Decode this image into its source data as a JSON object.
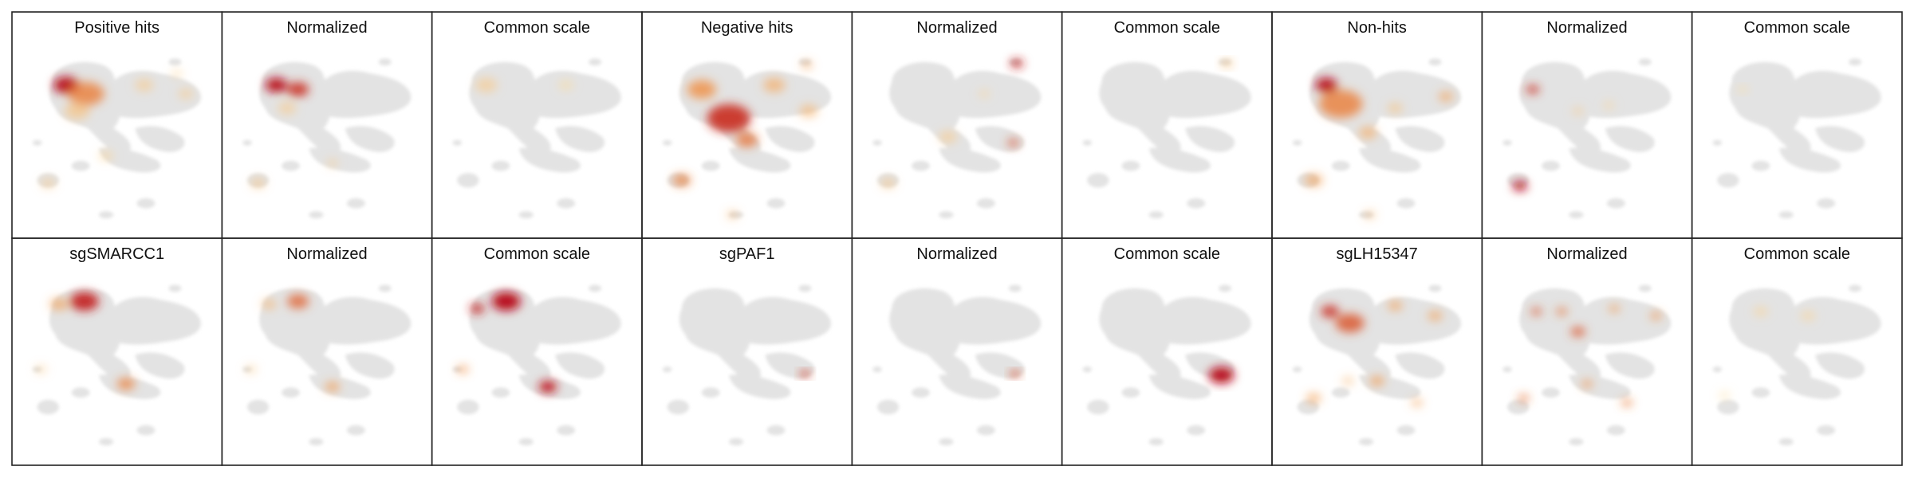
{
  "colors": {
    "background_cells": "#e3e3e3",
    "border": "#222222",
    "low": "#fff3b8",
    "mid": "#f08a3c",
    "high": "#b80a1a"
  },
  "rows": [
    {
      "panels": [
        {
          "title": "Positive hits",
          "blobs": [
            {
              "u": 0.22,
              "v": 0.22,
              "r": 0.07,
              "level": 1.0
            },
            {
              "u": 0.33,
              "v": 0.28,
              "r": 0.1,
              "level": 0.55
            },
            {
              "u": 0.28,
              "v": 0.4,
              "r": 0.07,
              "level": 0.25
            },
            {
              "u": 0.65,
              "v": 0.22,
              "r": 0.05,
              "level": 0.2
            },
            {
              "u": 0.88,
              "v": 0.28,
              "r": 0.04,
              "level": 0.2
            },
            {
              "u": 0.12,
              "v": 0.9,
              "r": 0.04,
              "level": 0.2
            },
            {
              "u": 0.44,
              "v": 0.71,
              "r": 0.04,
              "level": 0.15
            },
            {
              "u": 0.83,
              "v": 0.14,
              "r": 0.03,
              "level": 0.15
            }
          ]
        },
        {
          "title": "Normalized",
          "blobs": [
            {
              "u": 0.22,
              "v": 0.22,
              "r": 0.06,
              "level": 1.0
            },
            {
              "u": 0.34,
              "v": 0.25,
              "r": 0.06,
              "level": 0.85
            },
            {
              "u": 0.28,
              "v": 0.38,
              "r": 0.05,
              "level": 0.2
            },
            {
              "u": 0.12,
              "v": 0.9,
              "r": 0.04,
              "level": 0.25
            },
            {
              "u": 0.53,
              "v": 0.76,
              "r": 0.03,
              "level": 0.2
            }
          ]
        },
        {
          "title": "Common scale",
          "blobs": [
            {
              "u": 0.22,
              "v": 0.22,
              "r": 0.06,
              "level": 0.2
            },
            {
              "u": 0.66,
              "v": 0.22,
              "r": 0.04,
              "level": 0.12
            }
          ]
        },
        {
          "title": "Negative hits",
          "blobs": [
            {
              "u": 0.25,
              "v": 0.25,
              "r": 0.08,
              "level": 0.5
            },
            {
              "u": 0.4,
              "v": 0.45,
              "r": 0.12,
              "level": 0.85
            },
            {
              "u": 0.5,
              "v": 0.6,
              "r": 0.06,
              "level": 0.6
            },
            {
              "u": 0.65,
              "v": 0.22,
              "r": 0.06,
              "level": 0.35
            },
            {
              "u": 0.84,
              "v": 0.4,
              "r": 0.05,
              "level": 0.3
            },
            {
              "u": 0.14,
              "v": 0.88,
              "r": 0.05,
              "level": 0.55
            },
            {
              "u": 0.83,
              "v": 0.08,
              "r": 0.03,
              "level": 0.4
            },
            {
              "u": 0.42,
              "v": 1.12,
              "r": 0.03,
              "level": 0.3
            }
          ]
        },
        {
          "title": "Normalized",
          "blobs": [
            {
              "u": 0.83,
              "v": 0.07,
              "r": 0.035,
              "level": 0.9
            },
            {
              "u": 0.81,
              "v": 0.62,
              "r": 0.03,
              "level": 0.75
            },
            {
              "u": 0.12,
              "v": 0.9,
              "r": 0.04,
              "level": 0.25
            },
            {
              "u": 0.45,
              "v": 0.58,
              "r": 0.05,
              "level": 0.2
            },
            {
              "u": 0.65,
              "v": 0.28,
              "r": 0.03,
              "level": 0.15
            }
          ]
        },
        {
          "title": "Common scale",
          "blobs": [
            {
              "u": 0.83,
              "v": 0.07,
              "r": 0.035,
              "level": 0.25
            }
          ]
        },
        {
          "title": "Non-hits",
          "blobs": [
            {
              "u": 0.22,
              "v": 0.22,
              "r": 0.06,
              "level": 1.0
            },
            {
              "u": 0.3,
              "v": 0.35,
              "r": 0.12,
              "level": 0.55
            },
            {
              "u": 0.45,
              "v": 0.55,
              "r": 0.05,
              "level": 0.35
            },
            {
              "u": 0.88,
              "v": 0.3,
              "r": 0.04,
              "level": 0.4
            },
            {
              "u": 0.15,
              "v": 0.88,
              "r": 0.05,
              "level": 0.4
            },
            {
              "u": 0.6,
              "v": 0.38,
              "r": 0.04,
              "level": 0.25
            },
            {
              "u": 0.46,
              "v": 1.12,
              "r": 0.03,
              "level": 0.3
            }
          ]
        },
        {
          "title": "Normalized",
          "blobs": [
            {
              "u": 0.2,
              "v": 0.25,
              "r": 0.035,
              "level": 0.85
            },
            {
              "u": 0.13,
              "v": 0.92,
              "r": 0.04,
              "level": 1.0
            },
            {
              "u": 0.45,
              "v": 0.4,
              "r": 0.03,
              "level": 0.2
            },
            {
              "u": 0.62,
              "v": 0.36,
              "r": 0.03,
              "level": 0.15
            }
          ]
        },
        {
          "title": "Common scale",
          "blobs": [
            {
              "u": 0.2,
              "v": 0.25,
              "r": 0.03,
              "level": 0.1
            }
          ]
        }
      ]
    },
    {
      "panels": [
        {
          "title": "sgSMARCC1",
          "blobs": [
            {
              "u": 0.32,
              "v": 0.15,
              "r": 0.08,
              "level": 0.9
            },
            {
              "u": 0.18,
              "v": 0.17,
              "r": 0.05,
              "level": 0.4
            },
            {
              "u": 0.55,
              "v": 0.72,
              "r": 0.05,
              "level": 0.55
            },
            {
              "u": 0.08,
              "v": 0.62,
              "r": 0.03,
              "level": 0.2
            }
          ]
        },
        {
          "title": "Normalized",
          "blobs": [
            {
              "u": 0.34,
              "v": 0.15,
              "r": 0.06,
              "level": 0.65
            },
            {
              "u": 0.18,
              "v": 0.17,
              "r": 0.04,
              "level": 0.3
            },
            {
              "u": 0.53,
              "v": 0.74,
              "r": 0.04,
              "level": 0.45
            },
            {
              "u": 0.08,
              "v": 0.62,
              "r": 0.03,
              "level": 0.2
            }
          ]
        },
        {
          "title": "Common scale",
          "blobs": [
            {
              "u": 0.33,
              "v": 0.15,
              "r": 0.08,
              "level": 1.0
            },
            {
              "u": 0.17,
              "v": 0.2,
              "r": 0.04,
              "level": 0.9
            },
            {
              "u": 0.56,
              "v": 0.74,
              "r": 0.05,
              "level": 0.95
            },
            {
              "u": 0.09,
              "v": 0.62,
              "r": 0.03,
              "level": 0.5
            }
          ]
        },
        {
          "title": "sgPAF1",
          "blobs": [
            {
              "u": 0.82,
              "v": 0.65,
              "r": 0.03,
              "level": 0.8
            }
          ]
        },
        {
          "title": "Normalized",
          "blobs": [
            {
              "u": 0.82,
              "v": 0.65,
              "r": 0.03,
              "level": 0.75
            }
          ]
        },
        {
          "title": "Common scale",
          "blobs": [
            {
              "u": 0.8,
              "v": 0.66,
              "r": 0.07,
              "level": 1.0
            }
          ]
        },
        {
          "title": "sgLH15347",
          "blobs": [
            {
              "u": 0.24,
              "v": 0.22,
              "r": 0.05,
              "level": 0.85
            },
            {
              "u": 0.35,
              "v": 0.3,
              "r": 0.08,
              "level": 0.7
            },
            {
              "u": 0.6,
              "v": 0.18,
              "r": 0.04,
              "level": 0.4
            },
            {
              "u": 0.82,
              "v": 0.25,
              "r": 0.04,
              "level": 0.4
            },
            {
              "u": 0.5,
              "v": 0.7,
              "r": 0.04,
              "level": 0.45
            },
            {
              "u": 0.15,
              "v": 0.82,
              "r": 0.04,
              "level": 0.4
            },
            {
              "u": 0.72,
              "v": 0.85,
              "r": 0.03,
              "level": 0.4
            },
            {
              "u": 0.34,
              "v": 0.7,
              "r": 0.03,
              "level": 0.3
            }
          ]
        },
        {
          "title": "Normalized",
          "blobs": [
            {
              "u": 0.22,
              "v": 0.22,
              "r": 0.03,
              "level": 0.7
            },
            {
              "u": 0.36,
              "v": 0.22,
              "r": 0.03,
              "level": 0.6
            },
            {
              "u": 0.45,
              "v": 0.36,
              "r": 0.04,
              "level": 0.7
            },
            {
              "u": 0.65,
              "v": 0.2,
              "r": 0.03,
              "level": 0.45
            },
            {
              "u": 0.88,
              "v": 0.25,
              "r": 0.03,
              "level": 0.5
            },
            {
              "u": 0.15,
              "v": 0.82,
              "r": 0.03,
              "level": 0.6
            },
            {
              "u": 0.5,
              "v": 0.72,
              "r": 0.03,
              "level": 0.5
            },
            {
              "u": 0.72,
              "v": 0.85,
              "r": 0.03,
              "level": 0.55
            }
          ]
        },
        {
          "title": "Common scale",
          "blobs": [
            {
              "u": 0.3,
              "v": 0.22,
              "r": 0.04,
              "level": 0.15
            },
            {
              "u": 0.56,
              "v": 0.25,
              "r": 0.04,
              "level": 0.15
            },
            {
              "u": 0.1,
              "v": 0.8,
              "r": 0.03,
              "level": 0.1
            }
          ]
        }
      ]
    }
  ]
}
